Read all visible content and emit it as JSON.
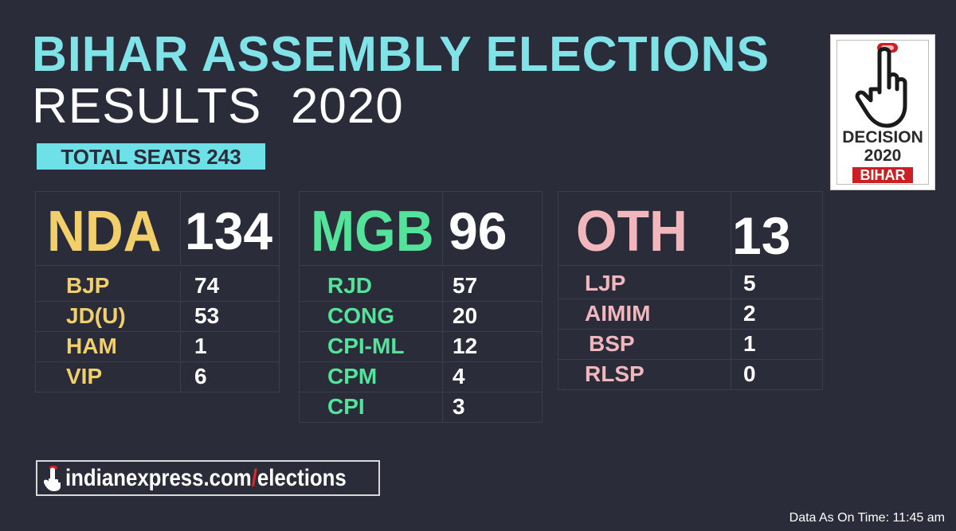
{
  "title_line1": "BIHAR ASSEMBLY ELECTIONS",
  "title_line2": "RESULTS  2020",
  "total_seats_label": "TOTAL SEATS 243",
  "colors": {
    "background": "#2b2c3a",
    "title": "#7fe3e8",
    "badge": "#6ee0e8",
    "nda": "#f1cf6a",
    "mgb": "#54e39a",
    "oth": "#f1b7bd",
    "logo_red": "#cc1f24"
  },
  "alliances": [
    {
      "name": "NDA",
      "total": "134",
      "parties": [
        {
          "name": "BJP",
          "seats": "74"
        },
        {
          "name": "JD(U)",
          "seats": "53"
        },
        {
          "name": "HAM",
          "seats": "1"
        },
        {
          "name": "VIP",
          "seats": "6"
        }
      ]
    },
    {
      "name": "MGB",
      "total": "96",
      "parties": [
        {
          "name": "RJD",
          "seats": "57"
        },
        {
          "name": "CONG",
          "seats": "20"
        },
        {
          "name": "CPI-ML",
          "seats": "12"
        },
        {
          "name": "CPM",
          "seats": "4"
        },
        {
          "name": "CPI",
          "seats": "3"
        }
      ]
    },
    {
      "name": "OTH",
      "total": "13",
      "parties": [
        {
          "name": "LJP",
          "seats": "5"
        },
        {
          "name": "AIMIM",
          "seats": "2"
        },
        {
          "name": "BSP",
          "seats": "1"
        },
        {
          "name": "RLSP",
          "seats": "0"
        }
      ]
    }
  ],
  "logo": {
    "line1": "DECISION",
    "line2": "2020",
    "line3": "BIHAR",
    "icon": "pointing-hand-icon"
  },
  "website": {
    "domain": "indianexpress.com",
    "slash": "/",
    "path": "elections",
    "icon": "pointing-hand-icon"
  },
  "timestamp": "Data As On Time: 11:45 am"
}
